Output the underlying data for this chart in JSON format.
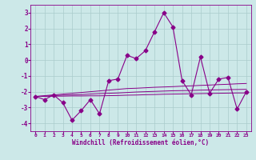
{
  "xlabel": "Windchill (Refroidissement éolien,°C)",
  "background_color": "#cce8e8",
  "grid_color": "#aacccc",
  "line_color": "#880088",
  "xlim": [
    -0.5,
    23.5
  ],
  "ylim": [
    -4.5,
    3.5
  ],
  "yticks": [
    -4,
    -3,
    -2,
    -1,
    0,
    1,
    2,
    3
  ],
  "xticks": [
    0,
    1,
    2,
    3,
    4,
    5,
    6,
    7,
    8,
    9,
    10,
    11,
    12,
    13,
    14,
    15,
    16,
    17,
    18,
    19,
    20,
    21,
    22,
    23
  ],
  "series1_x": [
    0,
    1,
    2,
    3,
    4,
    5,
    6,
    7,
    8,
    9,
    10,
    11,
    12,
    13,
    14,
    15,
    16,
    17,
    18,
    19,
    20,
    21,
    22,
    23
  ],
  "series1_y": [
    -2.3,
    -2.5,
    -2.2,
    -2.7,
    -3.8,
    -3.2,
    -2.5,
    -3.4,
    -1.3,
    -1.2,
    0.3,
    0.1,
    0.6,
    1.8,
    3.0,
    2.1,
    -1.3,
    -2.2,
    0.2,
    -2.1,
    -1.2,
    -1.1,
    -3.1,
    -2.0
  ],
  "series2_x": [
    0,
    1,
    2,
    3,
    4,
    5,
    6,
    7,
    8,
    9,
    10,
    11,
    12,
    13,
    14,
    15,
    16,
    17,
    18,
    19,
    20,
    21,
    22,
    23
  ],
  "series2_y": [
    -2.3,
    -2.25,
    -2.2,
    -2.15,
    -2.1,
    -2.05,
    -2.0,
    -1.95,
    -1.9,
    -1.85,
    -1.8,
    -1.78,
    -1.75,
    -1.72,
    -1.7,
    -1.68,
    -1.65,
    -1.63,
    -1.6,
    -1.58,
    -1.55,
    -1.53,
    -1.5,
    -1.48
  ],
  "series3_x": [
    0,
    1,
    2,
    3,
    4,
    5,
    6,
    7,
    8,
    9,
    10,
    11,
    12,
    13,
    14,
    15,
    16,
    17,
    18,
    19,
    20,
    21,
    22,
    23
  ],
  "series3_y": [
    -2.3,
    -2.28,
    -2.25,
    -2.22,
    -2.2,
    -2.18,
    -2.15,
    -2.12,
    -2.1,
    -2.08,
    -2.05,
    -2.02,
    -2.0,
    -1.98,
    -1.96,
    -1.94,
    -1.93,
    -1.92,
    -1.9,
    -1.89,
    -1.88,
    -1.87,
    -1.86,
    -1.85
  ],
  "series4_x": [
    0,
    1,
    2,
    3,
    4,
    5,
    6,
    7,
    8,
    9,
    10,
    11,
    12,
    13,
    14,
    15,
    16,
    17,
    18,
    19,
    20,
    21,
    22,
    23
  ],
  "series4_y": [
    -2.3,
    -2.3,
    -2.28,
    -2.28,
    -2.27,
    -2.27,
    -2.26,
    -2.26,
    -2.25,
    -2.24,
    -2.22,
    -2.21,
    -2.19,
    -2.18,
    -2.16,
    -2.15,
    -2.14,
    -2.13,
    -2.12,
    -2.11,
    -2.1,
    -2.09,
    -2.08,
    -2.08
  ]
}
